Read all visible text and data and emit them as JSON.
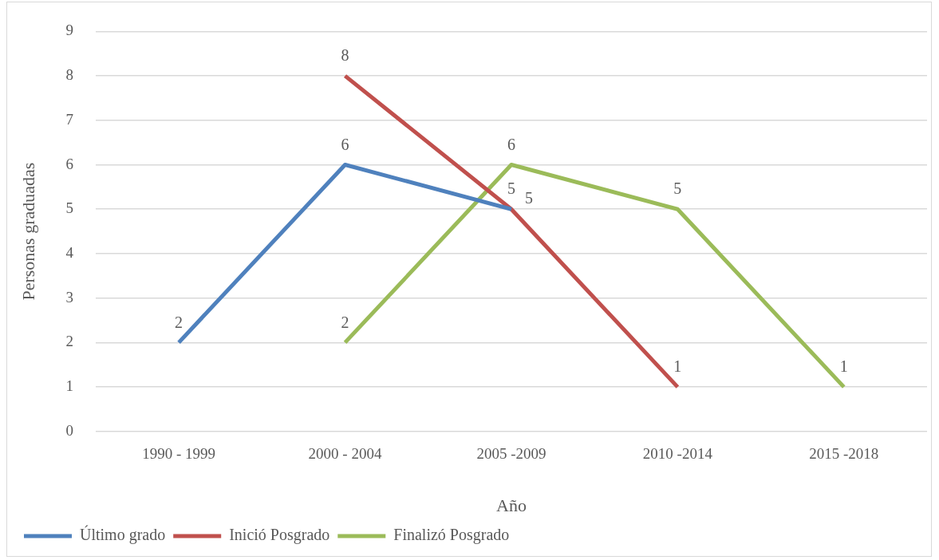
{
  "chart_data": {
    "type": "line",
    "xlabel": "Año",
    "ylabel": "Personas graduadas",
    "categories": [
      "1990 - 1999",
      "2000 - 2004",
      "2005 -2009",
      "2010 -2014",
      "2015 -2018"
    ],
    "series": [
      {
        "name": "Último grado",
        "color": "#4f81bd",
        "values": [
          2,
          6,
          5,
          null,
          null
        ]
      },
      {
        "name": "Inició Posgrado",
        "color": "#c0504d",
        "values": [
          null,
          8,
          5,
          1,
          null
        ]
      },
      {
        "name": "Finalizó Posgrado",
        "color": "#9bbb59",
        "values": [
          null,
          2,
          6,
          5,
          1
        ]
      }
    ],
    "ylim": [
      0,
      9
    ],
    "yticks": [
      0,
      1,
      2,
      3,
      4,
      5,
      6,
      7,
      8,
      9
    ],
    "grid": "y",
    "legend": "bottom",
    "marker": "none",
    "line_style": "solid",
    "data_labels": true
  }
}
